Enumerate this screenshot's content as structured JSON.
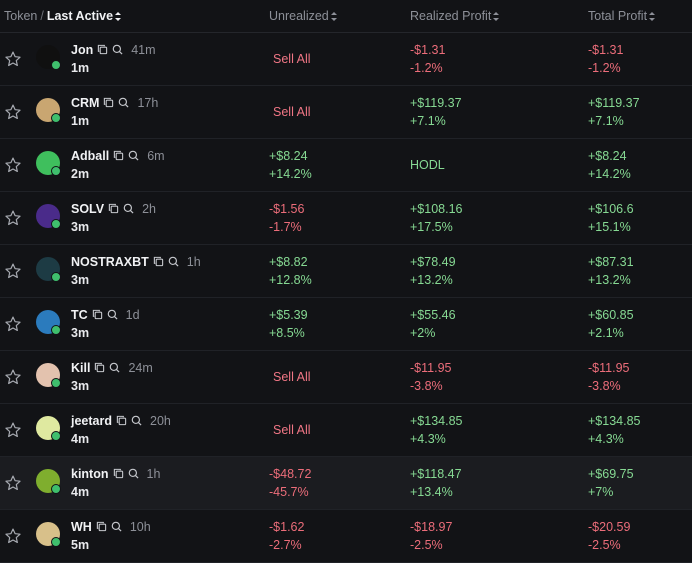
{
  "header": {
    "token": "Token",
    "last_active": "Last Active",
    "unrealized": "Unrealized",
    "realized": "Realized Profit",
    "total": "Total Profit"
  },
  "colors": {
    "positive": "#86d993",
    "negative": "#ec6d7a",
    "sell": "#f07685",
    "background": "#121316"
  },
  "rows": [
    {
      "symbol": "Jon",
      "age": "41m",
      "last_active": "1m",
      "unrealized": {
        "type": "sell",
        "text": "Sell All"
      },
      "realized": {
        "type": "pair",
        "v1": "-$1.31",
        "v2": "-1.2%",
        "sign": "neg"
      },
      "total": {
        "v1": "-$1.31",
        "v2": "-1.2%",
        "sign": "neg"
      },
      "avatar_color": "#101010"
    },
    {
      "symbol": "CRM",
      "age": "17h",
      "last_active": "1m",
      "unrealized": {
        "type": "sell",
        "text": "Sell All"
      },
      "realized": {
        "type": "pair",
        "v1": "+$119.37",
        "v2": "+7.1%",
        "sign": "pos"
      },
      "total": {
        "v1": "+$119.37",
        "v2": "+7.1%",
        "sign": "pos"
      },
      "avatar_color": "#c9a671"
    },
    {
      "symbol": "Adball",
      "age": "6m",
      "last_active": "2m",
      "unrealized": {
        "type": "pair",
        "v1": "+$8.24",
        "v2": "+14.2%",
        "sign": "pos"
      },
      "realized": {
        "type": "hodl",
        "text": "HODL"
      },
      "total": {
        "v1": "+$8.24",
        "v2": "+14.2%",
        "sign": "pos"
      },
      "avatar_color": "#3fbf5d"
    },
    {
      "symbol": "SOLV",
      "age": "2h",
      "last_active": "3m",
      "unrealized": {
        "type": "pair",
        "v1": "-$1.56",
        "v2": "-1.7%",
        "sign": "neg"
      },
      "realized": {
        "type": "pair",
        "v1": "+$108.16",
        "v2": "+17.5%",
        "sign": "pos"
      },
      "total": {
        "v1": "+$106.6",
        "v2": "+15.1%",
        "sign": "pos"
      },
      "avatar_color": "#4a2b8a"
    },
    {
      "symbol": "NOSTRAXBT",
      "age": "1h",
      "last_active": "3m",
      "unrealized": {
        "type": "pair",
        "v1": "+$8.82",
        "v2": "+12.8%",
        "sign": "pos"
      },
      "realized": {
        "type": "pair",
        "v1": "+$78.49",
        "v2": "+13.2%",
        "sign": "pos"
      },
      "total": {
        "v1": "+$87.31",
        "v2": "+13.2%",
        "sign": "pos"
      },
      "avatar_color": "#1d3b44"
    },
    {
      "symbol": "TC",
      "age": "1d",
      "last_active": "3m",
      "unrealized": {
        "type": "pair",
        "v1": "+$5.39",
        "v2": "+8.5%",
        "sign": "pos"
      },
      "realized": {
        "type": "pair",
        "v1": "+$55.46",
        "v2": "+2%",
        "sign": "pos"
      },
      "total": {
        "v1": "+$60.85",
        "v2": "+2.1%",
        "sign": "pos"
      },
      "avatar_color": "#2b7bbd"
    },
    {
      "symbol": "Kill",
      "age": "24m",
      "last_active": "3m",
      "unrealized": {
        "type": "sell",
        "text": "Sell All"
      },
      "realized": {
        "type": "pair",
        "v1": "-$11.95",
        "v2": "-3.8%",
        "sign": "neg"
      },
      "total": {
        "v1": "-$11.95",
        "v2": "-3.8%",
        "sign": "neg"
      },
      "avatar_color": "#e3c2ae"
    },
    {
      "symbol": "jeetard",
      "age": "20h",
      "last_active": "4m",
      "unrealized": {
        "type": "sell",
        "text": "Sell All"
      },
      "realized": {
        "type": "pair",
        "v1": "+$134.85",
        "v2": "+4.3%",
        "sign": "pos"
      },
      "total": {
        "v1": "+$134.85",
        "v2": "+4.3%",
        "sign": "pos"
      },
      "avatar_color": "#dfe9a0"
    },
    {
      "symbol": "kinton",
      "age": "1h",
      "last_active": "4m",
      "unrealized": {
        "type": "pair",
        "v1": "-$48.72",
        "v2": "-45.7%",
        "sign": "neg"
      },
      "realized": {
        "type": "pair",
        "v1": "+$118.47",
        "v2": "+13.4%",
        "sign": "pos"
      },
      "total": {
        "v1": "+$69.75",
        "v2": "+7%",
        "sign": "pos"
      },
      "avatar_color": "#7fae2e",
      "highlighted": true
    },
    {
      "symbol": "WH",
      "age": "10h",
      "last_active": "5m",
      "unrealized": {
        "type": "pair",
        "v1": "-$1.62",
        "v2": "-2.7%",
        "sign": "neg"
      },
      "realized": {
        "type": "pair",
        "v1": "-$18.97",
        "v2": "-2.5%",
        "sign": "neg"
      },
      "total": {
        "v1": "-$20.59",
        "v2": "-2.5%",
        "sign": "neg"
      },
      "avatar_color": "#d8c08a"
    }
  ]
}
